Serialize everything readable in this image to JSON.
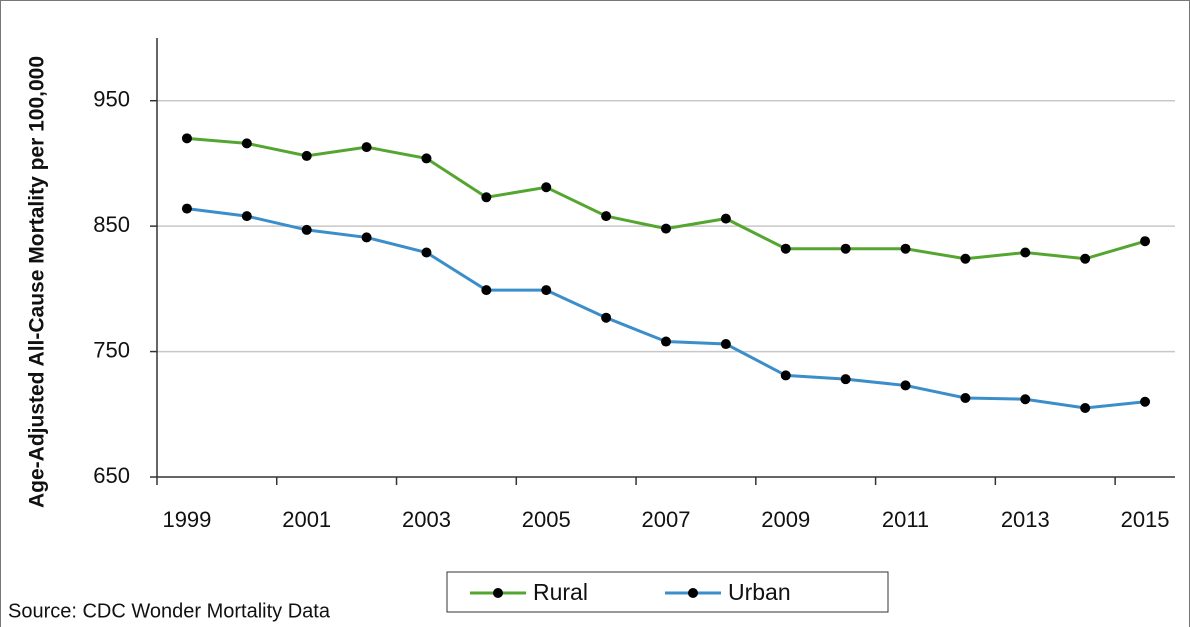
{
  "chart_data": {
    "type": "line",
    "y_axis_label": "Age-Adjusted All-Cause Mortality per 100,000",
    "source": "Source: CDC Wonder Mortality Data",
    "categories": [
      "1999",
      null,
      "2001",
      null,
      "2003",
      null,
      "2005",
      null,
      "2007",
      null,
      "2009",
      null,
      "2011",
      null,
      "2013",
      null,
      "2015"
    ],
    "series": [
      {
        "name": "Rural",
        "color": "#55a630",
        "values": [
          920,
          916,
          906,
          913,
          904,
          873,
          881,
          858,
          848,
          856,
          832,
          832,
          832,
          824,
          829,
          824,
          838
        ]
      },
      {
        "name": "Urban",
        "color": "#3b8ec9",
        "values": [
          864,
          858,
          847,
          841,
          829,
          799,
          799,
          777,
          758,
          756,
          731,
          728,
          723,
          713,
          712,
          705,
          710
        ]
      }
    ],
    "ylim": [
      650,
      1000
    ],
    "yticks": [
      650,
      750,
      850,
      950
    ],
    "grid": true,
    "legend": "bottom"
  }
}
